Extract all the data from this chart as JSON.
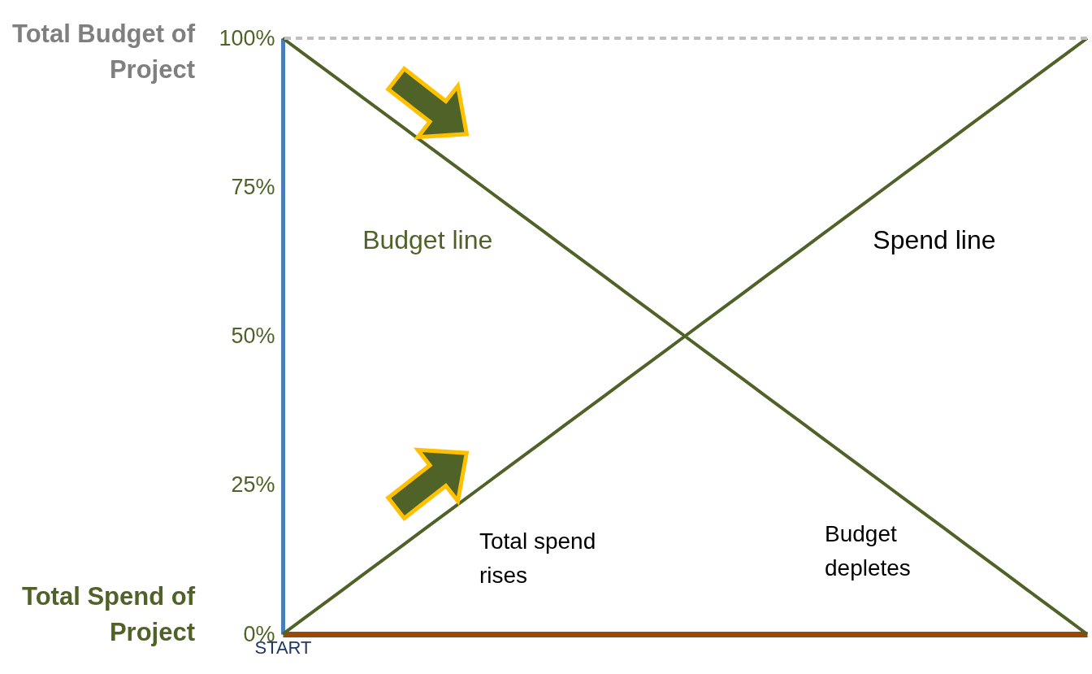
{
  "chart_data": {
    "type": "line",
    "ylabel": "Total Budget of Project",
    "categories": [
      "START",
      null,
      null,
      null,
      null,
      null,
      null,
      null,
      null,
      null,
      null,
      null,
      null,
      null,
      null,
      null,
      null,
      null,
      null,
      null,
      null,
      null,
      null,
      null,
      null,
      null,
      null,
      null,
      null,
      null,
      null,
      null,
      null,
      null,
      null,
      null,
      null,
      null,
      null,
      null,
      null
    ],
    "series": [
      {
        "name": "Budget line",
        "color": "#4f6228",
        "values": [
          100,
          97.5,
          95,
          92.5,
          90,
          87.5,
          85,
          82.5,
          80,
          77.5,
          75,
          72.5,
          70,
          67.5,
          65,
          62.5,
          60,
          57.5,
          55,
          52.5,
          50,
          47.5,
          45,
          42.5,
          40,
          37.5,
          35,
          32.5,
          30,
          27.5,
          25,
          22.5,
          20,
          17.5,
          15,
          12.5,
          10,
          7.5,
          5,
          2.5,
          0
        ]
      },
      {
        "name": "Spend line",
        "color": "#4f6228",
        "values": [
          0,
          2.5,
          5,
          7.5,
          10,
          12.5,
          15,
          17.5,
          20,
          22.5,
          25,
          27.5,
          30,
          32.5,
          35,
          37.5,
          40,
          42.5,
          45,
          47.5,
          50,
          52.5,
          55,
          57.5,
          60,
          62.5,
          65,
          67.5,
          70,
          72.5,
          75,
          77.5,
          80,
          82.5,
          85,
          87.5,
          90,
          92.5,
          95,
          97.5,
          100
        ]
      }
    ],
    "ylim": [
      0,
      100
    ],
    "yticks": [
      {
        "value": 0,
        "label": "0%"
      },
      {
        "value": 25,
        "label": "25%"
      },
      {
        "value": 50,
        "label": "50%"
      },
      {
        "value": 75,
        "label": "75%"
      },
      {
        "value": 100,
        "label": "100%"
      }
    ],
    "grid": false,
    "legend": false,
    "marker": "none",
    "line_style": "solid",
    "ref_lines": [
      {
        "axis": "y",
        "value": 100,
        "color": "#bfbfbf",
        "line_style": "dashed"
      }
    ],
    "annotations": [
      "Total Spend of Project",
      "Total spend rises",
      "Budget depletes"
    ]
  }
}
